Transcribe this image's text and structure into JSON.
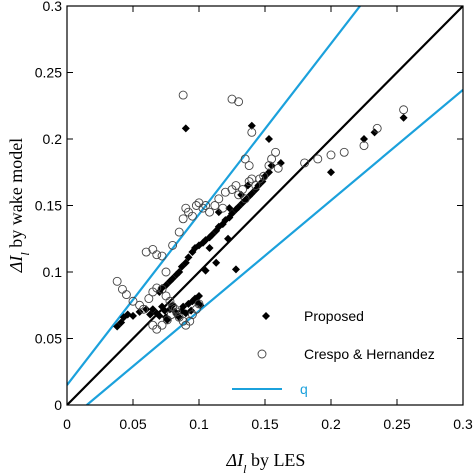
{
  "chart_data": {
    "type": "scatter",
    "xlabel_prefix": "ΔI",
    "xlabel_sub": "l",
    "xlabel_suffix": " by LES",
    "ylabel_prefix": "ΔI",
    "ylabel_sub": "l",
    "ylabel_suffix": " by wake model",
    "xlim": [
      0,
      0.3
    ],
    "ylim": [
      0,
      0.3
    ],
    "xticks": [
      0,
      0.05,
      0.1,
      0.15,
      0.2,
      0.25,
      0.3
    ],
    "xtick_labels": [
      "0",
      "0.05",
      "0.1",
      "0.15",
      "0.2",
      "0.25",
      "0.3"
    ],
    "yticks": [
      0,
      0.05,
      0.1,
      0.15,
      0.2,
      0.25,
      0.3
    ],
    "ytick_labels": [
      "0",
      "0.05",
      "0.1",
      "0.15",
      "0.2",
      "0.25",
      "0.3"
    ],
    "grid": false,
    "legend_position": "bottom-right",
    "colors": {
      "proposed": "#000000",
      "crespo": "#444444",
      "identity": "#000000",
      "bounds": "#1ba1dc"
    },
    "series": [
      {
        "name": "Proposed",
        "marker": "filled-diamond",
        "points": [
          [
            0.038,
            0.059
          ],
          [
            0.041,
            0.062
          ],
          [
            0.043,
            0.066
          ],
          [
            0.046,
            0.068
          ],
          [
            0.05,
            0.067
          ],
          [
            0.055,
            0.07
          ],
          [
            0.06,
            0.072
          ],
          [
            0.063,
            0.068
          ],
          [
            0.065,
            0.072
          ],
          [
            0.068,
            0.069
          ],
          [
            0.07,
            0.067
          ],
          [
            0.072,
            0.074
          ],
          [
            0.074,
            0.071
          ],
          [
            0.075,
            0.066
          ],
          [
            0.076,
            0.064
          ],
          [
            0.078,
            0.072
          ],
          [
            0.08,
            0.075
          ],
          [
            0.082,
            0.07
          ],
          [
            0.083,
            0.068
          ],
          [
            0.085,
            0.066
          ],
          [
            0.087,
            0.071
          ],
          [
            0.088,
            0.074
          ],
          [
            0.09,
            0.069
          ],
          [
            0.092,
            0.076
          ],
          [
            0.094,
            0.071
          ],
          [
            0.095,
            0.078
          ],
          [
            0.097,
            0.08
          ],
          [
            0.099,
            0.077
          ],
          [
            0.1,
            0.082
          ],
          [
            0.101,
            0.075
          ],
          [
            0.07,
            0.085
          ],
          [
            0.072,
            0.088
          ],
          [
            0.075,
            0.09
          ],
          [
            0.078,
            0.093
          ],
          [
            0.08,
            0.095
          ],
          [
            0.083,
            0.098
          ],
          [
            0.085,
            0.1
          ],
          [
            0.087,
            0.104
          ],
          [
            0.09,
            0.107
          ],
          [
            0.092,
            0.111
          ],
          [
            0.095,
            0.115
          ],
          [
            0.097,
            0.118
          ],
          [
            0.1,
            0.12
          ],
          [
            0.103,
            0.122
          ],
          [
            0.105,
            0.124
          ],
          [
            0.108,
            0.126
          ],
          [
            0.11,
            0.128
          ],
          [
            0.113,
            0.131
          ],
          [
            0.115,
            0.134
          ],
          [
            0.118,
            0.136
          ],
          [
            0.12,
            0.139
          ],
          [
            0.123,
            0.141
          ],
          [
            0.125,
            0.144
          ],
          [
            0.128,
            0.147
          ],
          [
            0.13,
            0.149
          ],
          [
            0.133,
            0.152
          ],
          [
            0.135,
            0.154
          ],
          [
            0.138,
            0.157
          ],
          [
            0.14,
            0.159
          ],
          [
            0.143,
            0.162
          ],
          [
            0.145,
            0.165
          ],
          [
            0.148,
            0.168
          ],
          [
            0.15,
            0.172
          ],
          [
            0.153,
            0.175
          ],
          [
            0.155,
            0.18
          ],
          [
            0.09,
            0.208
          ],
          [
            0.14,
            0.21
          ],
          [
            0.153,
            0.2
          ],
          [
            0.162,
            0.182
          ],
          [
            0.123,
            0.148
          ],
          [
            0.115,
            0.145
          ],
          [
            0.128,
            0.102
          ],
          [
            0.108,
            0.118
          ],
          [
            0.113,
            0.107
          ],
          [
            0.2,
            0.175
          ],
          [
            0.225,
            0.2
          ],
          [
            0.233,
            0.205
          ],
          [
            0.255,
            0.216
          ],
          [
            0.105,
            0.101
          ],
          [
            0.122,
            0.125
          ],
          [
            0.132,
            0.158
          ],
          [
            0.137,
            0.165
          ]
        ]
      },
      {
        "name": "Crespo & Hernandez",
        "marker": "open-circle",
        "points": [
          [
            0.038,
            0.093
          ],
          [
            0.042,
            0.087
          ],
          [
            0.045,
            0.083
          ],
          [
            0.05,
            0.078
          ],
          [
            0.055,
            0.075
          ],
          [
            0.058,
            0.072
          ],
          [
            0.062,
            0.08
          ],
          [
            0.065,
            0.085
          ],
          [
            0.068,
            0.088
          ],
          [
            0.072,
            0.087
          ],
          [
            0.075,
            0.082
          ],
          [
            0.078,
            0.078
          ],
          [
            0.08,
            0.074
          ],
          [
            0.083,
            0.07
          ],
          [
            0.085,
            0.066
          ],
          [
            0.088,
            0.063
          ],
          [
            0.09,
            0.06
          ],
          [
            0.093,
            0.063
          ],
          [
            0.095,
            0.068
          ],
          [
            0.098,
            0.072
          ],
          [
            0.1,
            0.076
          ],
          [
            0.065,
            0.06
          ],
          [
            0.068,
            0.057
          ],
          [
            0.072,
            0.06
          ],
          [
            0.076,
            0.064
          ],
          [
            0.079,
            0.068
          ],
          [
            0.082,
            0.072
          ],
          [
            0.06,
            0.115
          ],
          [
            0.065,
            0.117
          ],
          [
            0.068,
            0.113
          ],
          [
            0.072,
            0.112
          ],
          [
            0.075,
            0.1
          ],
          [
            0.08,
            0.12
          ],
          [
            0.085,
            0.13
          ],
          [
            0.088,
            0.14
          ],
          [
            0.09,
            0.148
          ],
          [
            0.092,
            0.145
          ],
          [
            0.095,
            0.142
          ],
          [
            0.098,
            0.15
          ],
          [
            0.1,
            0.152
          ],
          [
            0.103,
            0.148
          ],
          [
            0.105,
            0.15
          ],
          [
            0.108,
            0.145
          ],
          [
            0.112,
            0.15
          ],
          [
            0.115,
            0.155
          ],
          [
            0.118,
            0.148
          ],
          [
            0.12,
            0.16
          ],
          [
            0.125,
            0.162
          ],
          [
            0.128,
            0.165
          ],
          [
            0.13,
            0.158
          ],
          [
            0.133,
            0.162
          ],
          [
            0.135,
            0.155
          ],
          [
            0.138,
            0.168
          ],
          [
            0.14,
            0.17
          ],
          [
            0.143,
            0.165
          ],
          [
            0.146,
            0.17
          ],
          [
            0.149,
            0.172
          ],
          [
            0.153,
            0.18
          ],
          [
            0.155,
            0.185
          ],
          [
            0.158,
            0.19
          ],
          [
            0.16,
            0.178
          ],
          [
            0.14,
            0.205
          ],
          [
            0.135,
            0.185
          ],
          [
            0.138,
            0.18
          ],
          [
            0.088,
            0.233
          ],
          [
            0.13,
            0.228
          ],
          [
            0.125,
            0.23
          ],
          [
            0.18,
            0.182
          ],
          [
            0.19,
            0.185
          ],
          [
            0.2,
            0.188
          ],
          [
            0.21,
            0.19
          ],
          [
            0.225,
            0.195
          ],
          [
            0.235,
            0.208
          ],
          [
            0.255,
            0.222
          ]
        ]
      }
    ],
    "lines": [
      {
        "name": "identity",
        "style": "solid-black",
        "x": [
          0,
          0.3
        ],
        "y": [
          0,
          0.3
        ]
      },
      {
        "name": "upper bound",
        "style": "blue",
        "x": [
          0,
          0.222
        ],
        "y": [
          0.015,
          0.3
        ]
      },
      {
        "name": "lower bound",
        "style": "blue",
        "x": [
          0.015,
          0.3
        ],
        "y": [
          0,
          0.237
        ]
      }
    ],
    "legend": [
      {
        "label": "Proposed",
        "marker": "filled-diamond"
      },
      {
        "label": "Crespo & Hernandez",
        "marker": "open-circle"
      },
      {
        "label": "q",
        "marker": "blue-line"
      }
    ]
  }
}
